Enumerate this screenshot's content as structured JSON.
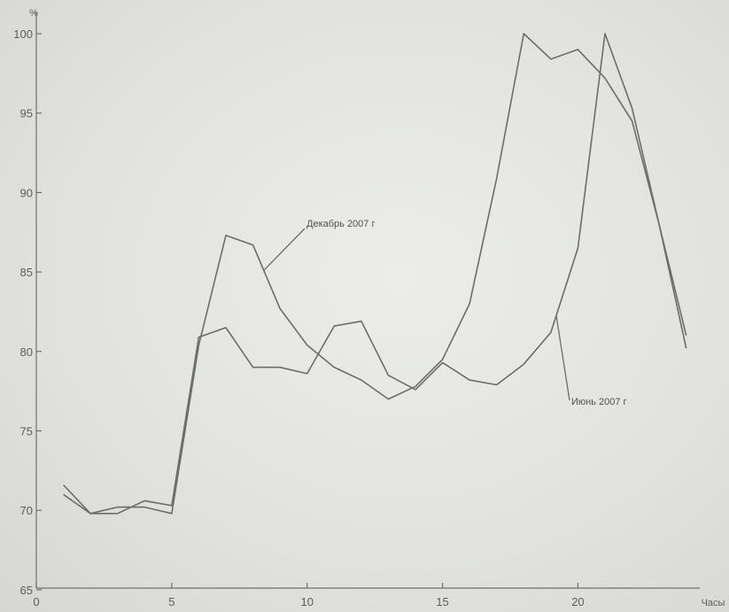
{
  "chart_data": {
    "type": "line",
    "title": "",
    "xlabel": "Часы",
    "ylabel": "%",
    "xlim": [
      0,
      24.5
    ],
    "ylim": [
      65,
      101.5
    ],
    "x_ticks": [
      0,
      5,
      10,
      15,
      20
    ],
    "y_ticks": [
      65,
      70,
      75,
      80,
      85,
      90,
      95,
      100
    ],
    "grid": false,
    "series": [
      {
        "name": "Декабрь 2007 г",
        "x": [
          1,
          2,
          3,
          4,
          5,
          6,
          7,
          8,
          9,
          10,
          11,
          12,
          13,
          14,
          15,
          16,
          17,
          18,
          19,
          20,
          21,
          22,
          23,
          24
        ],
        "values": [
          71.0,
          69.8,
          70.2,
          70.2,
          69.8,
          80.4,
          87.3,
          86.7,
          82.7,
          80.4,
          79.0,
          78.2,
          77.0,
          77.8,
          79.5,
          83.0,
          90.9,
          100.0,
          98.4,
          99.0,
          97.2,
          94.5,
          88.0,
          80.2
        ]
      },
      {
        "name": "Июнь 2007 г",
        "x": [
          1,
          2,
          3,
          4,
          5,
          6,
          7,
          8,
          9,
          10,
          11,
          12,
          13,
          14,
          15,
          16,
          17,
          18,
          19,
          20,
          21,
          22,
          23,
          24
        ],
        "values": [
          71.6,
          69.8,
          69.8,
          70.6,
          70.3,
          80.9,
          81.5,
          79.0,
          79.0,
          78.6,
          81.6,
          81.9,
          78.5,
          77.6,
          79.3,
          78.2,
          77.9,
          79.2,
          81.2,
          86.5,
          100.0,
          95.3,
          88.0,
          81.0
        ]
      }
    ],
    "annotations": [
      {
        "text": "Декабрь 2007 г",
        "series": 0,
        "anchor_x": 8.4
      },
      {
        "text": "Июнь 2007 г",
        "series": 1,
        "anchor_x": 19.2
      }
    ]
  }
}
